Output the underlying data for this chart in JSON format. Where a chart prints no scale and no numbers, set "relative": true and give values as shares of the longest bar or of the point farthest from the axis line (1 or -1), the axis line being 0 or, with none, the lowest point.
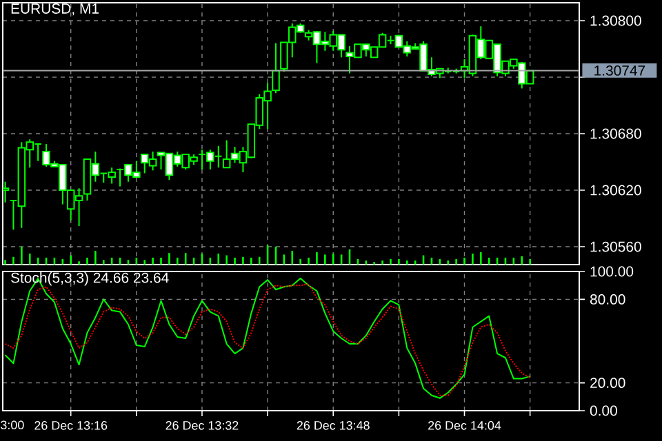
{
  "chart_data": [
    {
      "type": "candlestick",
      "title": "EURUSD, M1",
      "color": "#00ff00",
      "categories": [
        null,
        null,
        null,
        null,
        null,
        null,
        null,
        null,
        null,
        null,
        null,
        null,
        null,
        null,
        null,
        null,
        null,
        null,
        null,
        null,
        null,
        null,
        null,
        null,
        null,
        null,
        null,
        null,
        null,
        null,
        null,
        null,
        null,
        null,
        null,
        null,
        null,
        null,
        null,
        null,
        null,
        null,
        null,
        null,
        null,
        null,
        null,
        null,
        null,
        null,
        null,
        null,
        null,
        null,
        null,
        null,
        null,
        null,
        null,
        null,
        null,
        null,
        null,
        null,
        null
      ],
      "ohlc": [
        [
          1.3062,
          1.30629,
          1.30607,
          1.30622
        ],
        [
          1.30609,
          1.30609,
          1.30578,
          1.30609
        ],
        [
          1.30603,
          1.30671,
          1.3058,
          1.30665
        ],
        [
          1.30663,
          1.30674,
          1.30644,
          1.30671
        ],
        [
          1.30669,
          1.30669,
          1.30651,
          1.30669
        ],
        [
          1.30661,
          1.30669,
          1.30645,
          1.30647
        ],
        [
          1.30648,
          1.30651,
          1.30645,
          1.30645
        ],
        [
          1.30647,
          1.30647,
          1.30605,
          1.3062
        ],
        [
          1.306,
          1.3062,
          1.30588,
          1.3062
        ],
        [
          1.30609,
          1.30622,
          1.30582,
          1.30614
        ],
        [
          1.30616,
          1.30653,
          1.30609,
          1.30653
        ],
        [
          1.30648,
          1.30661,
          1.30629,
          1.30636
        ],
        [
          1.30638,
          1.30638,
          1.30628,
          1.30638
        ],
        [
          1.30634,
          1.30644,
          1.30627,
          1.30639
        ],
        [
          1.30642,
          1.30643,
          1.30624,
          1.30642
        ],
        [
          1.30647,
          1.30647,
          1.30629,
          1.30636
        ],
        [
          1.30639,
          1.30651,
          1.30634,
          1.30634
        ],
        [
          1.30658,
          1.30658,
          1.30638,
          1.30649
        ],
        [
          1.30646,
          1.30661,
          1.30641,
          1.30653
        ],
        [
          1.3066,
          1.3066,
          1.30642,
          1.30657
        ],
        [
          1.30659,
          1.30659,
          1.30631,
          1.30636
        ],
        [
          1.30657,
          1.30661,
          1.30645,
          1.30648
        ],
        [
          1.30644,
          1.30658,
          1.30642,
          1.30658
        ],
        [
          1.30651,
          1.30658,
          1.30647,
          1.30655
        ],
        [
          1.30658,
          1.30663,
          1.30642,
          1.30658
        ],
        [
          1.3066,
          1.30663,
          1.30642,
          1.30651
        ],
        [
          1.30656,
          1.30667,
          1.30644,
          1.30656
        ],
        [
          1.30644,
          1.30673,
          1.30644,
          1.30653
        ],
        [
          1.30659,
          1.30666,
          1.30649,
          1.30653
        ],
        [
          1.30649,
          1.30666,
          1.30639,
          1.30661
        ],
        [
          1.30655,
          1.3069,
          1.30654,
          1.3069
        ],
        [
          1.30689,
          1.30722,
          1.30685,
          1.30718
        ],
        [
          1.30715,
          1.30734,
          1.30685,
          1.30725
        ],
        [
          1.30726,
          1.30776,
          1.30723,
          1.30747
        ],
        [
          1.30749,
          1.30777,
          1.30746,
          1.30777
        ],
        [
          1.30777,
          1.30797,
          1.30761,
          1.30793
        ],
        [
          1.30795,
          1.30797,
          1.30787,
          1.30788
        ],
        [
          1.30783,
          1.3079,
          1.30779,
          1.30787
        ],
        [
          1.30788,
          1.30789,
          1.30755,
          1.30775
        ],
        [
          1.30778,
          1.30788,
          1.30768,
          1.30775
        ],
        [
          1.30773,
          1.30789,
          1.30768,
          1.30785
        ],
        [
          1.30785,
          1.30785,
          1.30761,
          1.30769
        ],
        [
          1.30766,
          1.30773,
          1.30744,
          1.30762
        ],
        [
          1.30761,
          1.30775,
          1.30761,
          1.30775
        ],
        [
          1.30775,
          1.30775,
          1.30762,
          1.30769
        ],
        [
          1.30761,
          1.30772,
          1.30761,
          1.30772
        ],
        [
          1.30772,
          1.30787,
          1.30772,
          1.30785
        ],
        [
          1.30779,
          1.30784,
          1.30775,
          1.30779
        ],
        [
          1.30784,
          1.30785,
          1.30772,
          1.30772
        ],
        [
          1.30773,
          1.30778,
          1.30762,
          1.30766
        ],
        [
          1.30772,
          1.30776,
          1.3077,
          1.3077
        ],
        [
          1.30775,
          1.30778,
          1.30747,
          1.30747
        ],
        [
          1.30748,
          1.30761,
          1.30741,
          1.30743
        ],
        [
          1.30744,
          1.30749,
          1.30739,
          1.30749
        ],
        [
          1.30746,
          1.3075,
          1.30744,
          1.30746
        ],
        [
          1.30746,
          1.30749,
          1.30744,
          1.30746
        ],
        [
          1.30747,
          1.30759,
          1.30739,
          1.30751
        ],
        [
          1.30744,
          1.30785,
          1.30741,
          1.30784
        ],
        [
          1.3078,
          1.30794,
          1.30759,
          1.30761
        ],
        [
          1.3076,
          1.30779,
          1.30759,
          1.30779
        ],
        [
          1.30775,
          1.30775,
          1.30741,
          1.30745
        ],
        [
          1.30744,
          1.30757,
          1.30741,
          1.30757
        ],
        [
          1.30752,
          1.30759,
          1.30749,
          1.30759
        ],
        [
          1.30755,
          1.30756,
          1.30728,
          1.30733
        ],
        [
          1.30733,
          1.30747,
          1.30733,
          1.30747
        ]
      ],
      "ylim": [
        1.30541,
        1.30819
      ],
      "yticks": [
        {
          "value": 1.3056,
          "label": "1.30560"
        },
        {
          "value": 1.3062,
          "label": "1.30620"
        },
        {
          "value": 1.3068,
          "label": "1.30680"
        },
        {
          "value": 1.3074,
          "label": null
        },
        {
          "value": 1.308,
          "label": "1.30800"
        }
      ],
      "grid": true,
      "tick_labels": "y",
      "ref_lines": [
        {
          "axis": "y",
          "value": 1.30747,
          "label": "1.30747",
          "color": "#a8a8a8"
        }
      ]
    },
    {
      "type": "bar",
      "relative": true,
      "color": "#00ff00",
      "tick_labels": false,
      "categories": [
        null,
        null,
        null,
        null,
        null,
        null,
        null,
        null,
        null,
        null,
        null,
        null,
        null,
        null,
        null,
        null,
        null,
        null,
        null,
        null,
        null,
        null,
        null,
        null,
        null,
        null,
        null,
        null,
        null,
        null,
        null,
        null,
        null,
        null,
        null,
        null,
        null,
        null,
        null,
        null,
        null,
        null,
        null,
        null,
        null,
        null,
        null,
        null,
        null,
        null,
        null,
        null,
        null,
        null,
        null,
        null,
        null,
        null,
        null,
        null,
        null,
        null,
        null,
        null,
        null
      ],
      "values": [
        0.24,
        0.4,
        0.93,
        0.57,
        0.36,
        0.36,
        0.36,
        0.29,
        0.48,
        0.17,
        0.36,
        0.71,
        0.24,
        0.36,
        0.36,
        0.24,
        0.36,
        0.24,
        0.36,
        0.36,
        0.6,
        0.36,
        0.6,
        0.36,
        0.57,
        0.36,
        0.57,
        0.48,
        0.36,
        0.4,
        0.36,
        0.4,
        1,
        0.93,
        0.52,
        0.71,
        0.29,
        0.36,
        0.64,
        0.52,
        0.57,
        0.52,
        0.79,
        0.29,
        0.21,
        0.14,
        0.21,
        0.29,
        0.29,
        0.21,
        0.21,
        0.48,
        0.36,
        0.29,
        0.21,
        0.29,
        0.36,
        0.57,
        0.64,
        0.36,
        0.36,
        0.36,
        0.36,
        0.43,
        0.29
      ]
    },
    {
      "type": "line",
      "title": "Stoch(5,3,3) 24.66 23.64",
      "categories": [
        null,
        null,
        null,
        null,
        null,
        null,
        null,
        null,
        "26 Dec 13:16",
        null,
        null,
        null,
        null,
        null,
        null,
        null,
        null,
        null,
        null,
        null,
        null,
        null,
        null,
        null,
        "26 Dec 13:32",
        null,
        null,
        null,
        null,
        null,
        null,
        null,
        null,
        null,
        null,
        null,
        null,
        null,
        null,
        null,
        "26 Dec 13:48",
        null,
        null,
        null,
        null,
        null,
        null,
        null,
        null,
        null,
        null,
        null,
        null,
        null,
        null,
        null,
        "26 Dec 14:04",
        null,
        null,
        null,
        null,
        null,
        null,
        null,
        null
      ],
      "series": [
        {
          "color": "#00ff00",
          "line_style": "solid",
          "values": [
            40,
            34,
            64,
            86,
            95,
            84,
            78,
            59,
            48,
            33,
            56,
            67,
            80,
            72,
            71,
            62,
            47,
            46,
            60,
            79,
            62,
            53,
            52,
            68,
            79,
            71,
            68,
            48,
            41,
            45,
            70,
            89,
            94,
            87,
            89,
            90,
            95,
            90,
            86,
            70,
            57,
            52,
            48,
            48,
            54,
            64,
            73,
            79,
            76,
            45,
            34,
            16,
            11,
            9,
            13,
            19,
            26,
            60,
            64,
            68,
            41,
            38,
            23,
            23,
            24.66
          ]
        },
        {
          "color": "#ff0000",
          "line_style": "dotted",
          "values": [
            48,
            45,
            54,
            73,
            87,
            89,
            81,
            70,
            57,
            45,
            49,
            60,
            71,
            74,
            73,
            68,
            57,
            52,
            56,
            67,
            67,
            59,
            55,
            60,
            71,
            73,
            71,
            64,
            49,
            45,
            56,
            73,
            87,
            90,
            89,
            90,
            90,
            91,
            81,
            76,
            64,
            54,
            50,
            48,
            52,
            60,
            67,
            75,
            73,
            57,
            41,
            29,
            19,
            11,
            11,
            18,
            32,
            49,
            60,
            62,
            56,
            43,
            34,
            27,
            23.64
          ]
        }
      ],
      "ylim": [
        0,
        100
      ],
      "yticks": [
        {
          "value": 0,
          "label": "0.00"
        },
        {
          "value": 20,
          "label": "20.00"
        },
        {
          "value": 80,
          "label": "80.00"
        },
        {
          "value": 100,
          "label": "100.00"
        }
      ],
      "grid": true,
      "annotations": [
        "3:00"
      ]
    }
  ]
}
